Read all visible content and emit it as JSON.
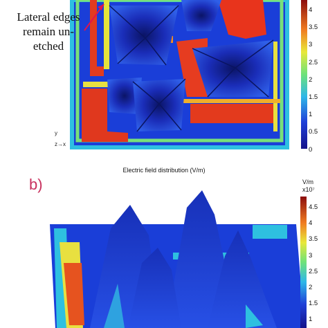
{
  "annotation": "Lateral edges remain un-etched",
  "axes": {
    "y": "y",
    "zx": "z→x"
  },
  "panel_b": {
    "label": "b)",
    "title": "Electric field distribution (V/m)",
    "unit": "V/m",
    "exponent": "x10⁷"
  },
  "colorbar_top_ticks": [
    "4",
    "3.5",
    "3",
    "2.5",
    "2",
    "1.5",
    "1",
    "0.5",
    "0"
  ],
  "colorbar_bottom_ticks": [
    "4.5",
    "4",
    "3.5",
    "3",
    "2.5",
    "2",
    "1.5",
    "1"
  ],
  "colors": {
    "accent": "#c8315e",
    "arrow": "#e0144c"
  }
}
